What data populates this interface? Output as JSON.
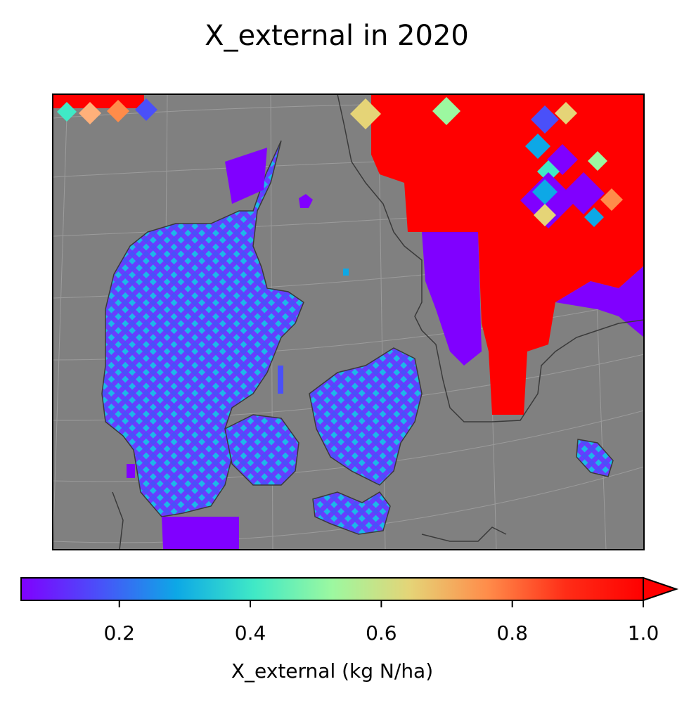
{
  "title": "X_external in 2020",
  "colorbar": {
    "label": "X_external (kg N/ha)",
    "min": 0.05,
    "max": 1.0,
    "extend": "max",
    "colormap": "rainbow",
    "ticks": [
      {
        "value": 0.2,
        "label": "0.2"
      },
      {
        "value": 0.4,
        "label": "0.4"
      },
      {
        "value": 0.6,
        "label": "0.6"
      },
      {
        "value": 0.8,
        "label": "0.8"
      },
      {
        "value": 1.0,
        "label": "1.0"
      }
    ],
    "stops": [
      "#8000ff",
      "#4a50f9",
      "#0da8e6",
      "#40e9c6",
      "#9cf8a0",
      "#e5d477",
      "#ff8c4a",
      "#ff2d17",
      "#ff0000"
    ]
  },
  "colors": {
    "background_sea": "#808080",
    "coastline": "#3a3a3a",
    "gridline": "#a8a8a8"
  }
}
